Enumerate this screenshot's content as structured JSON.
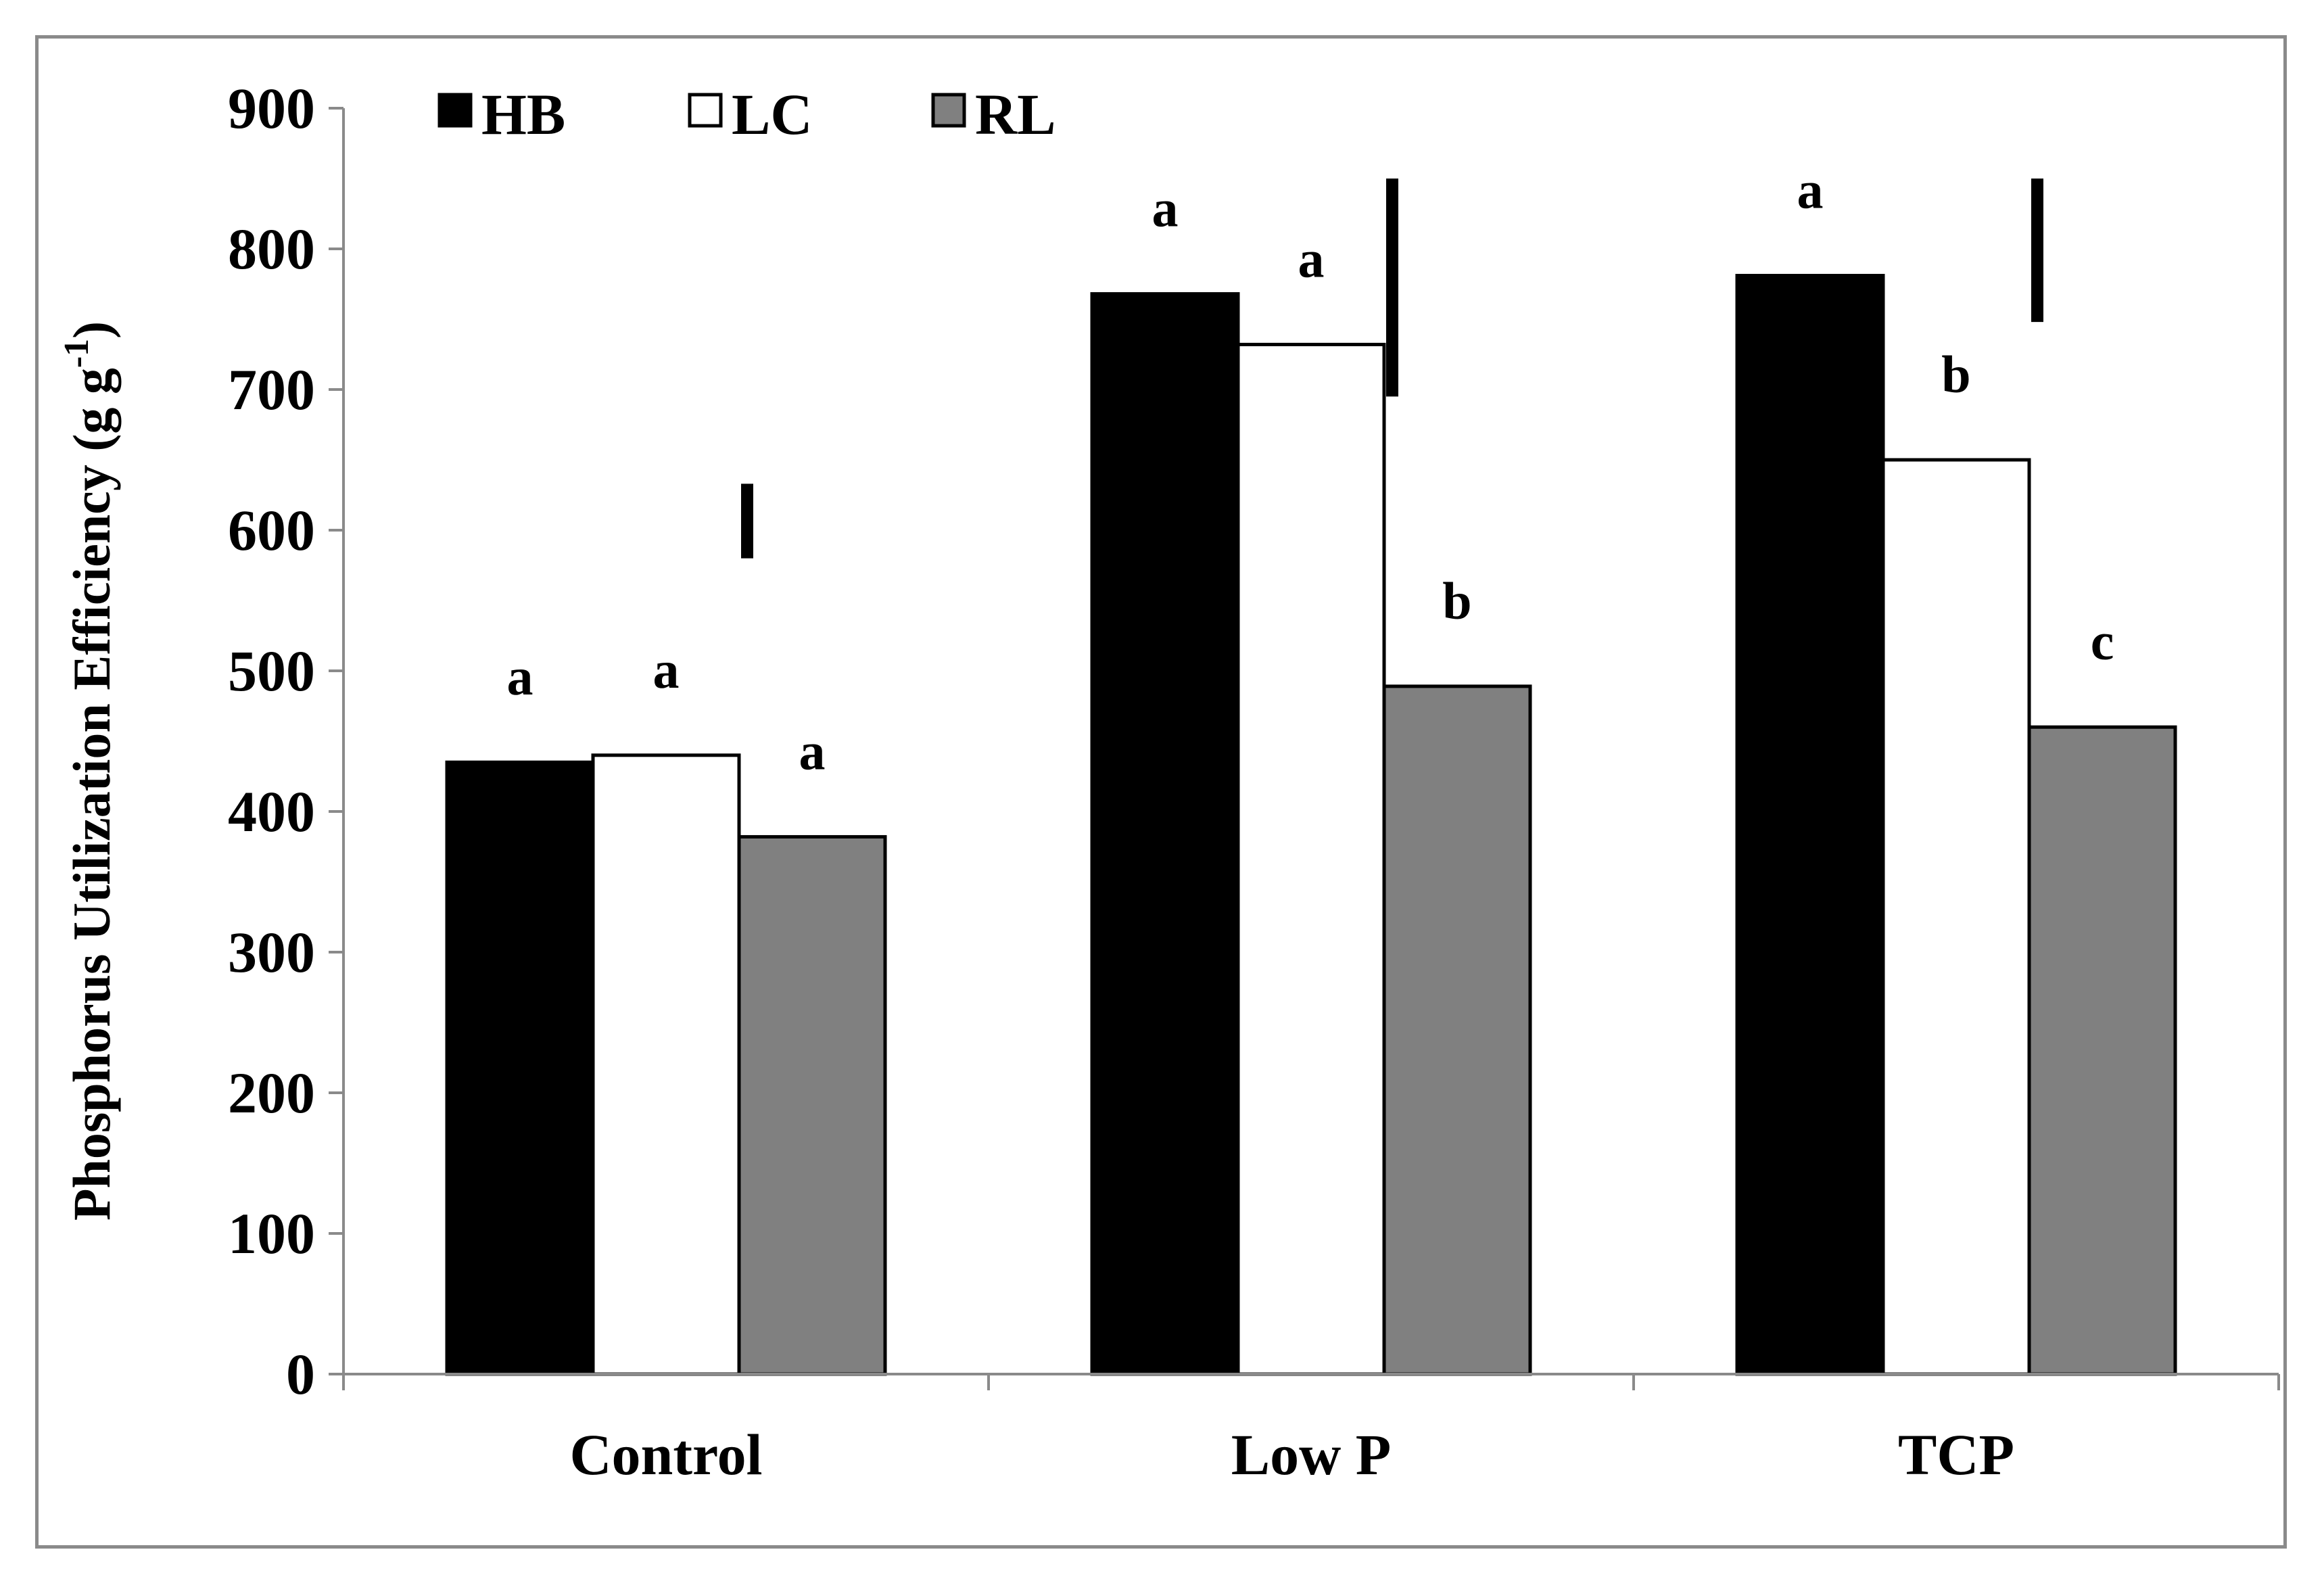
{
  "chart_data": {
    "type": "bar",
    "title": "",
    "xlabel": "",
    "ylabel": "Phosphorus Utilization Efficiency (g g",
    "ylabel_superscript": "-1",
    "ylabel_close": ")",
    "ylim": [
      0,
      900
    ],
    "yticks": [
      0,
      100,
      200,
      300,
      400,
      500,
      600,
      700,
      800,
      900
    ],
    "categories": [
      "Control",
      "Low P",
      "TCP"
    ],
    "series": [
      {
        "name": "HB",
        "color": "#000000",
        "values": [
          435,
          768,
          781
        ],
        "letters": [
          "a",
          "a",
          "a"
        ]
      },
      {
        "name": "LC",
        "color": "#ffffff",
        "values": [
          440,
          732,
          650
        ],
        "letters": [
          "a",
          "a",
          "b"
        ]
      },
      {
        "name": "RL",
        "color": "#808080",
        "values": [
          382,
          489,
          460
        ],
        "letters": [
          "a",
          "b",
          "c"
        ]
      }
    ],
    "error_bars": [
      {
        "category": "Control",
        "low": 580,
        "high": 633
      },
      {
        "category": "Low P",
        "low": 695,
        "high": 850
      },
      {
        "category": "TCP",
        "low": 748,
        "high": 850
      }
    ],
    "legend_position": "top-left",
    "grid": false
  }
}
